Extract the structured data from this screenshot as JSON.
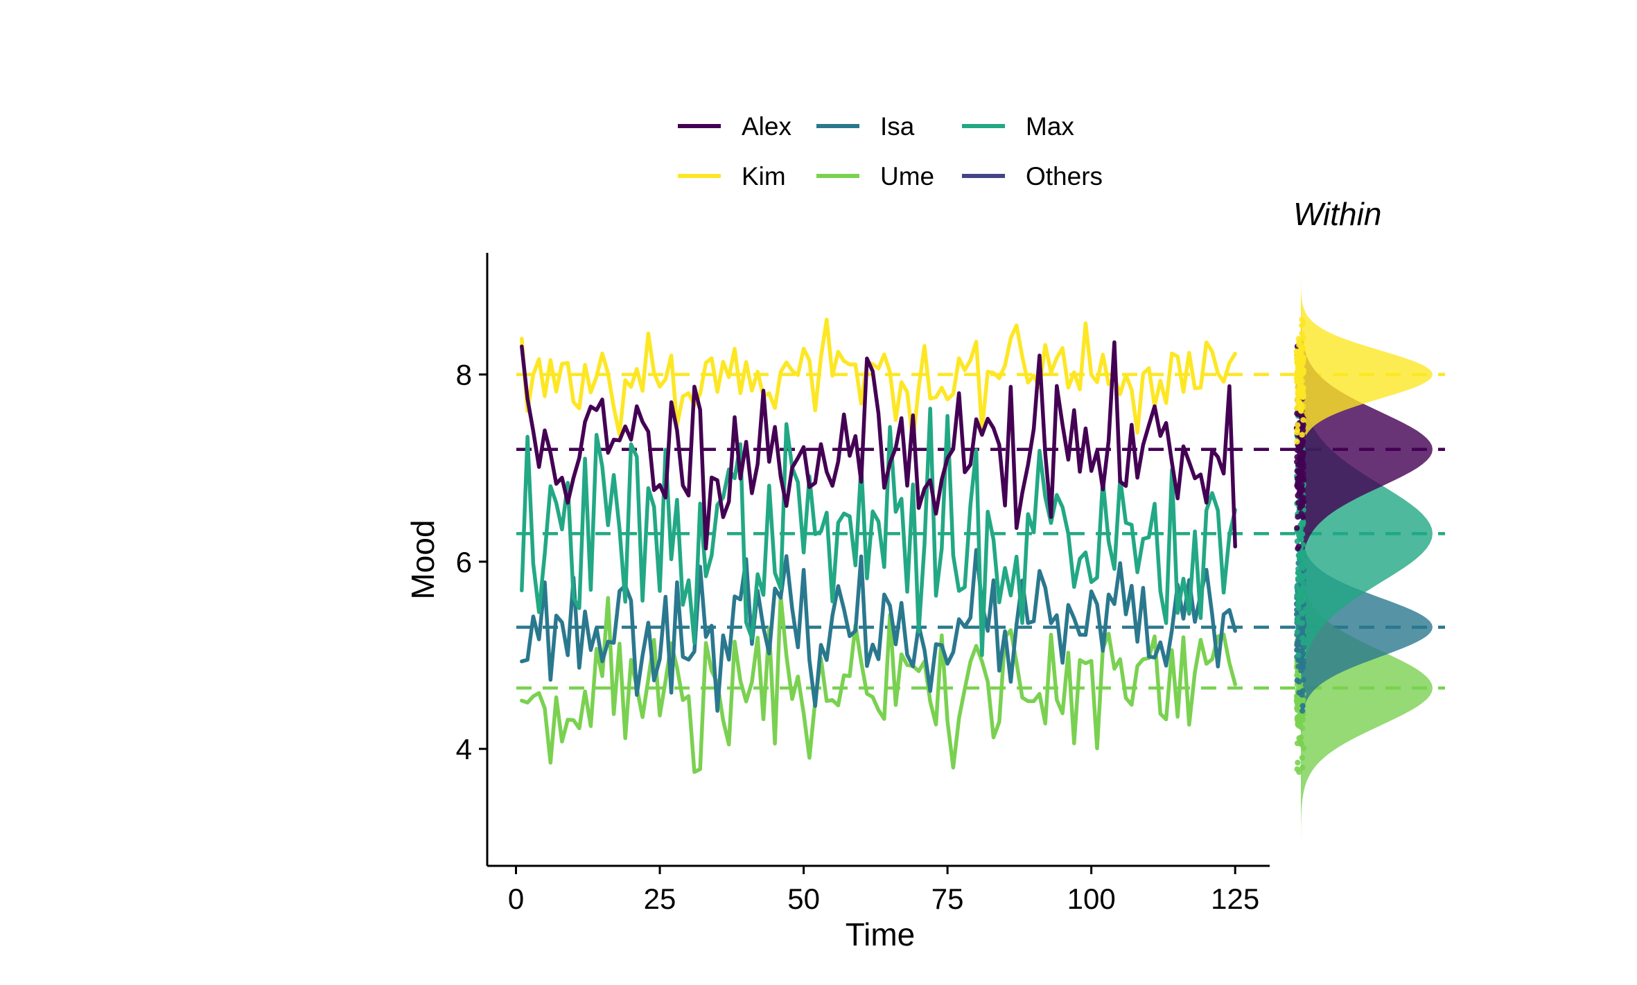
{
  "chart_data": {
    "type": "line",
    "xlabel": "Time",
    "ylabel": "Mood",
    "xlim": [
      -5,
      131
    ],
    "ylim": [
      2.75,
      9.3
    ],
    "x_ticks": [
      "0",
      "25",
      "50",
      "75",
      "100",
      "125"
    ],
    "y_ticks": [
      "4",
      "6",
      "8"
    ],
    "grid": false,
    "legend_position": "top",
    "side_panel_title": "Within",
    "x": [
      1,
      125
    ],
    "series": [
      {
        "name": "Alex",
        "color": "#440154",
        "mean": 7.2,
        "sd": 0.42,
        "seed": 11
      },
      {
        "name": "Isa",
        "color": "#2A788E",
        "mean": 5.3,
        "sd": 0.33,
        "seed": 23
      },
      {
        "name": "Max",
        "color": "#22A884",
        "mean": 6.3,
        "sd": 0.55,
        "seed": 37
      },
      {
        "name": "Kim",
        "color": "#FDE725",
        "mean": 8.0,
        "sd": 0.27,
        "seed": 53
      },
      {
        "name": "Ume",
        "color": "#7AD151",
        "mean": 4.65,
        "sd": 0.42,
        "seed": 71
      },
      {
        "name": "Others",
        "color": "#414487"
      }
    ],
    "mean_lines": [
      {
        "name": "Kim",
        "value": 8.0
      },
      {
        "name": "Alex",
        "value": 7.2
      },
      {
        "name": "Max",
        "value": 6.3
      },
      {
        "name": "Isa",
        "value": 5.3
      },
      {
        "name": "Ume",
        "value": 4.65
      }
    ]
  }
}
